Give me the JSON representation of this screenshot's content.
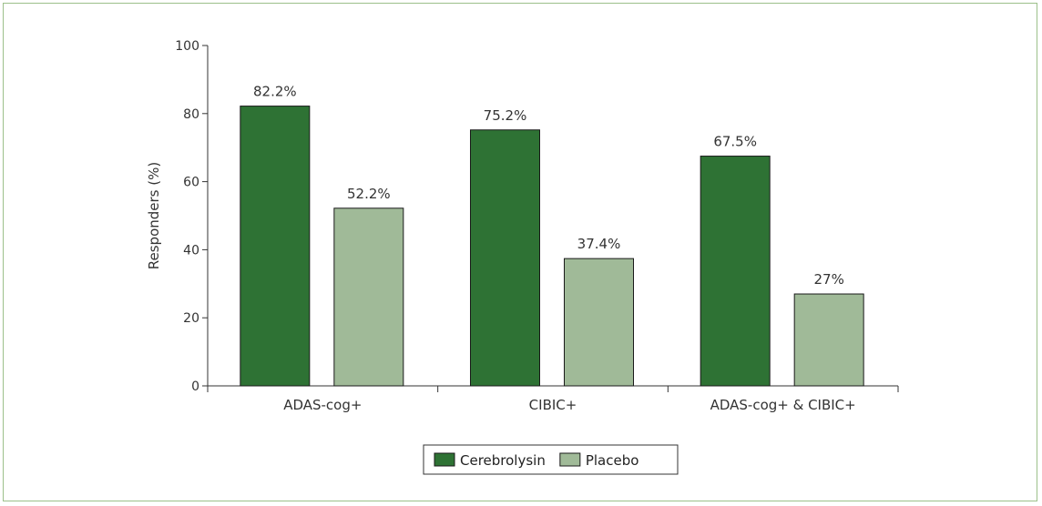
{
  "chart_data": {
    "type": "bar",
    "categories": [
      "ADAS-cog+",
      "CIBIC+",
      "ADAS-cog+ & CIBIC+"
    ],
    "series": [
      {
        "name": "Cerebrolysin",
        "values": [
          82.2,
          75.2,
          67.5
        ],
        "labels": [
          "82.2%",
          "75.2%",
          "67.5%"
        ],
        "color": "#2e7234"
      },
      {
        "name": "Placebo",
        "values": [
          52.2,
          37.4,
          27
        ],
        "labels": [
          "52.2%",
          "37.4%",
          "27%"
        ],
        "color": "#a0ba98"
      }
    ],
    "ylabel": "Responders (%)",
    "xlabel": "",
    "ylim": [
      0,
      100
    ],
    "yticks": [
      0,
      20,
      40,
      60,
      80,
      100
    ],
    "grid": false,
    "legend_position": "bottom-center"
  },
  "colors": {
    "frame_border": "#9cc08a",
    "axis": "#333333"
  }
}
